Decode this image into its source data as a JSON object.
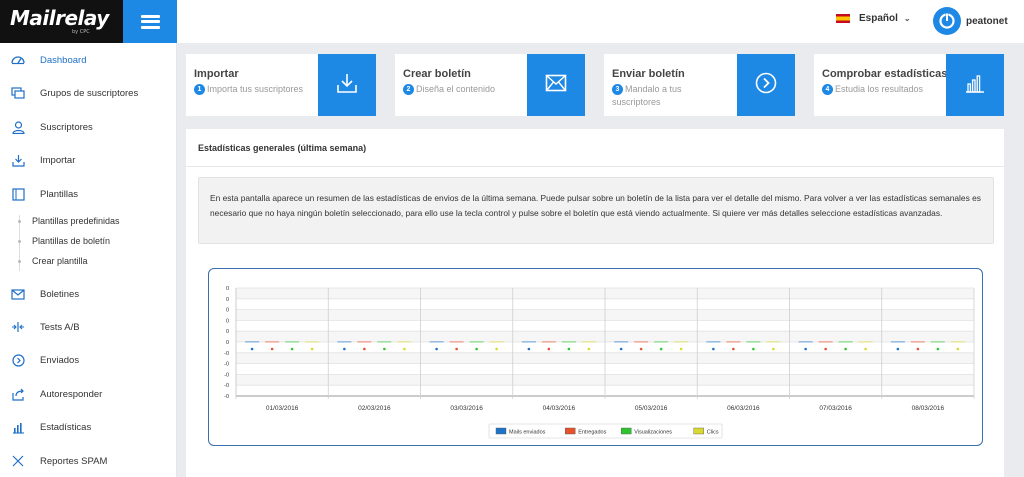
{
  "brand": {
    "logo_text": "Mailrelay",
    "logo_byline": "by CPC"
  },
  "header": {
    "language": "Español",
    "language_flag": "spain-flag",
    "username": "peatonet"
  },
  "sidebar": {
    "items": [
      {
        "label": "Dashboard",
        "icon": "dashboard-gauge-icon",
        "active": true
      },
      {
        "label": "Grupos de suscriptores",
        "icon": "groups-icon"
      },
      {
        "label": "Suscriptores",
        "icon": "user-icon"
      },
      {
        "label": "Importar",
        "icon": "download-icon"
      },
      {
        "label": "Plantillas",
        "icon": "template-icon"
      },
      {
        "label": "Boletines",
        "icon": "envelope-icon"
      },
      {
        "label": "Tests A/B",
        "icon": "split-arrows-icon"
      },
      {
        "label": "Enviados",
        "icon": "circle-arrow-icon"
      },
      {
        "label": "Autoresponder",
        "icon": "reply-icon"
      },
      {
        "label": "Estadísticas",
        "icon": "bar-chart-icon"
      },
      {
        "label": "Reportes SPAM",
        "icon": "close-icon"
      }
    ],
    "subitems": [
      {
        "label": "Plantillas predefinidas"
      },
      {
        "label": "Plantillas de boletín"
      },
      {
        "label": "Crear plantilla"
      }
    ]
  },
  "cards": [
    {
      "title": "Importar",
      "num": "1",
      "text": "Importa tus suscriptores",
      "icon": "download-icon"
    },
    {
      "title": "Crear boletín",
      "num": "2",
      "text": "Diseña el contenido",
      "icon": "envelope-icon"
    },
    {
      "title": "Enviar boletín",
      "num": "3",
      "text": "Mandalo a tus suscriptores",
      "icon": "circle-arrow-icon"
    },
    {
      "title": "Comprobar estadísticas",
      "num": "4",
      "text": "Estudia los resultados",
      "icon": "bar-chart-icon"
    }
  ],
  "stats": {
    "title": "Estadísticas generales (última semana)",
    "info": "En esta pantalla aparece un resumen de las estadísticas de envios de la última semana. Puede pulsar sobre un boletín de la lista para ver el detalle del mismo. Para volver a ver las estadísticas semanales es necesario que no haya ningún boletín seleccionado, para ello use la tecla control y pulse sobre el boletín que está viendo actualmente. Si quiere ver más detalles seleccione estadísticas avanzadas."
  },
  "colors": {
    "accent": "#1e88e5",
    "chart_border": "#3a6fb0"
  },
  "chart_data": {
    "type": "bar",
    "categories": [
      "01/03/2016",
      "02/03/2016",
      "03/03/2016",
      "04/03/2016",
      "05/03/2016",
      "06/03/2016",
      "07/03/2016",
      "08/03/2016"
    ],
    "y_tick_labels": [
      "0",
      "0",
      "0",
      "0",
      "0",
      "0",
      "-0",
      "-0",
      "-0",
      "-0",
      "-0"
    ],
    "series": [
      {
        "name": "Mails enviados",
        "color": "#1e73c8",
        "values": [
          0,
          0,
          0,
          0,
          0,
          0,
          0,
          0
        ]
      },
      {
        "name": "Entregados",
        "color": "#e8502c",
        "values": [
          0,
          0,
          0,
          0,
          0,
          0,
          0,
          0
        ]
      },
      {
        "name": "Visualizaciones",
        "color": "#2ec42e",
        "values": [
          0,
          0,
          0,
          0,
          0,
          0,
          0,
          0
        ]
      },
      {
        "name": "Clics",
        "color": "#d8d830",
        "values": [
          0,
          0,
          0,
          0,
          0,
          0,
          0,
          0
        ]
      }
    ],
    "data_labels": "0",
    "legend_position": "bottom",
    "grid": true
  }
}
